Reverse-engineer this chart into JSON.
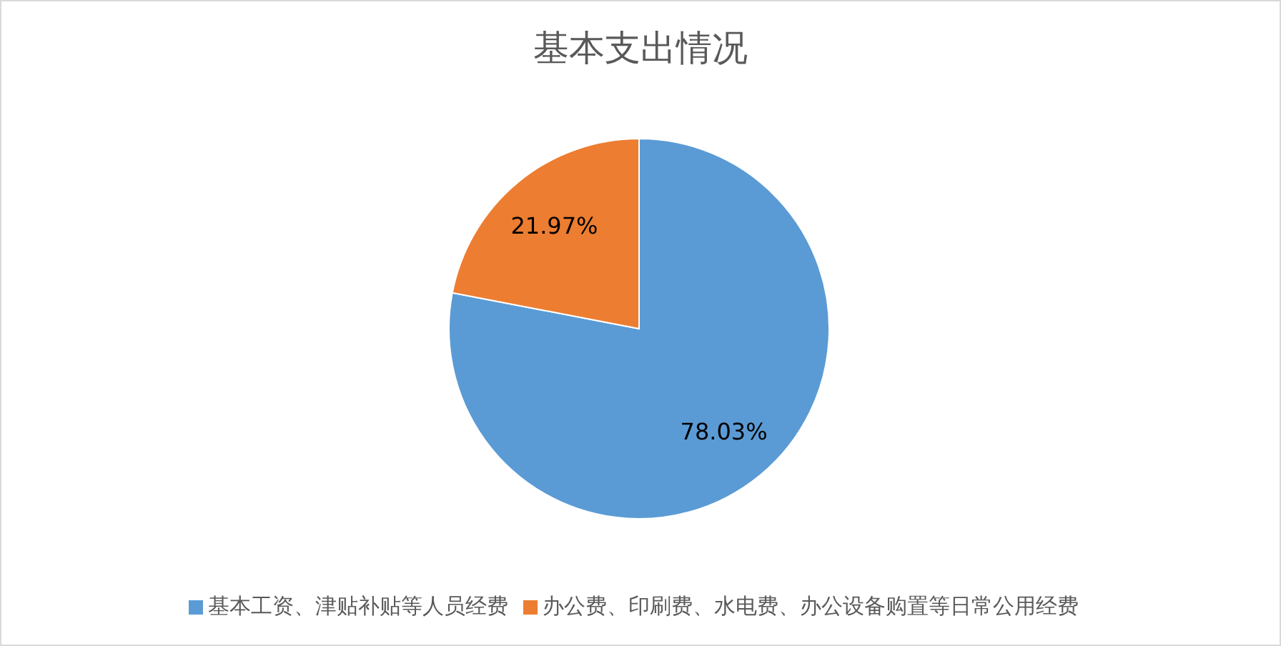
{
  "chart_data": {
    "type": "pie",
    "title": "基本支出情况",
    "categories": [
      "基本工资、津贴补贴等人员经费",
      "办公费、印刷费、水电费、办公设备购置等日常公用经费"
    ],
    "values": [
      78.03,
      21.97
    ],
    "colors": [
      "#5b9bd5",
      "#ed7d31"
    ],
    "value_labels": [
      "78.03%",
      "21.97%"
    ],
    "legend": "bottom"
  }
}
